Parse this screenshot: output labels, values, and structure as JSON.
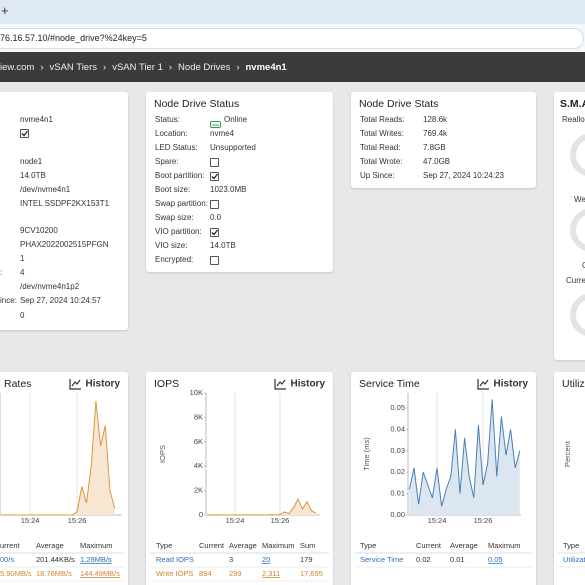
{
  "browser": {
    "tab": "+",
    "address": "76.16.57.10/#node_drive?%24key=5"
  },
  "breadcrumb": {
    "items": [
      "iew.com",
      "vSAN Tiers",
      "vSAN Tier 1",
      "Node Drives",
      "nvme4n1"
    ],
    "separator": "›"
  },
  "drive_panel": {
    "rows": [
      {
        "value": "nvme4n1"
      },
      {
        "checked": true
      },
      {
        "value": "node1"
      },
      {
        "value": "14.0TB"
      },
      {
        "value": "/dev/nvme4n1"
      },
      {
        "value": "INTEL SSDPF2KX153T1"
      },
      {
        "value": "9CV10200"
      },
      {
        "value": "PHAX2022002515PFGN"
      },
      {
        "value": "1"
      },
      {
        "label": ":",
        "value": "4"
      },
      {
        "value": "/dev/nvme4n1p2"
      },
      {
        "label": "ince:",
        "value": "Sep 27, 2024 10:24:57"
      },
      {
        "value": "0"
      }
    ]
  },
  "status_panel": {
    "title": "Node Drive Status",
    "rows": [
      {
        "label": "Status:",
        "value": "Online"
      },
      {
        "label": "Location:",
        "value": "nvme4"
      },
      {
        "label": "LED Status:",
        "value": "Unsupported"
      },
      {
        "label": "Spare:",
        "checked": false
      },
      {
        "label": "Boot partition:",
        "checked": true
      },
      {
        "label": "Boot size:",
        "value": "1023.0MB"
      },
      {
        "label": "Swap partition:",
        "checked": false
      },
      {
        "label": "Swap size:",
        "value": "0.0"
      },
      {
        "label": "VIO partition:",
        "checked": true
      },
      {
        "label": "VIO size:",
        "value": "14.0TB"
      },
      {
        "label": "Encrypted:",
        "checked": false
      }
    ]
  },
  "stats_panel": {
    "title": "Node Drive Stats",
    "rows": [
      {
        "label": "Total Reads:",
        "value": "128.6k"
      },
      {
        "label": "Total Writes:",
        "value": "769.4k"
      },
      {
        "label": "Total Read:",
        "value": "7.8GB"
      },
      {
        "label": "Total Wrote:",
        "value": "47.0GB"
      },
      {
        "label": "Up Since:",
        "value": "Sep 27, 2024 10:24:23"
      }
    ]
  },
  "smart_panel": {
    "title": "S.M.A",
    "labels": [
      "Realloc",
      "We",
      "C",
      "Curre"
    ]
  },
  "chart_data": [
    {
      "type": "area",
      "title": "Rates",
      "history": "History",
      "x": [
        22.8,
        23.0,
        23.2,
        23.4,
        23.6,
        23.8,
        24.0,
        24.2,
        24.4,
        24.6,
        24.8,
        25.0,
        25.2,
        25.4,
        25.6,
        25.8,
        26.0,
        26.2,
        26.4,
        26.6,
        26.8,
        27.0,
        27.2,
        27.4,
        27.6
      ],
      "xlim": [
        22.72,
        27.91
      ],
      "xticks": [
        {
          "value": 24,
          "label": "15:24"
        },
        {
          "value": 26,
          "label": "15:26"
        }
      ],
      "ylim": [
        0,
        150
      ],
      "series": [
        {
          "color": "#e0953a",
          "fill": "#f7e6d2",
          "values": [
            0,
            0,
            0,
            0,
            0,
            0,
            0,
            0,
            0,
            0,
            0,
            0,
            0,
            0,
            0,
            0,
            4,
            35,
            15,
            60,
            140,
            85,
            110,
            30,
            8
          ]
        }
      ],
      "table": {
        "columns": [
          "urrent",
          "Average",
          "Maximum"
        ],
        "colors": [
          "#2c6fb5",
          "#d4852c"
        ],
        "rows": [
          [
            "00/s",
            "201.44KB/s",
            "1.29MB/s"
          ],
          [
            "5.90MB/s",
            "18.76MB/s",
            "144.49MB/s"
          ]
        ]
      }
    },
    {
      "type": "area",
      "title": "IOPS",
      "history": "History",
      "y_label": "IOPS",
      "x": [
        22.8,
        23.0,
        23.2,
        23.4,
        23.6,
        23.8,
        24.0,
        24.2,
        24.4,
        24.6,
        24.8,
        25.0,
        25.2,
        25.4,
        25.6,
        25.8,
        26.0,
        26.2,
        26.4,
        26.6,
        26.8,
        27.0,
        27.2,
        27.4,
        27.6
      ],
      "xlim": [
        22.71,
        27.78
      ],
      "xticks": [
        {
          "value": 24,
          "label": "15:24"
        },
        {
          "value": 26,
          "label": "15:26"
        }
      ],
      "ylim": [
        0,
        10000
      ],
      "yticks": [
        0,
        {
          "value": 2000,
          "label": "2K"
        },
        {
          "value": 4000,
          "label": "4K"
        },
        {
          "value": 6000,
          "label": "6K"
        },
        {
          "value": 8000,
          "label": "8K"
        },
        {
          "value": 10000,
          "label": "10K"
        }
      ],
      "series": [
        {
          "name": "Write IOPS",
          "color": "#e0953a",
          "fill": "#f7e6d2",
          "values": [
            10,
            0,
            15,
            0,
            5,
            0,
            10,
            0,
            0,
            20,
            0,
            10,
            0,
            0,
            15,
            0,
            40,
            250,
            120,
            600,
            1300,
            500,
            1100,
            350,
            150
          ]
        }
      ],
      "table": {
        "columns": [
          "Type",
          "Current",
          "Average",
          "Maximum",
          "Sum"
        ],
        "colors": [
          "#2c6fb5",
          "#d4852c"
        ],
        "rows": [
          [
            "Read IOPS",
            null,
            "3",
            "20",
            "179"
          ],
          [
            "Write IOPS",
            "894",
            "299",
            "2,311",
            "17,695"
          ]
        ]
      }
    },
    {
      "type": "area",
      "title": "Service Time",
      "history": "History",
      "y_label": "Time (ms)",
      "x": [
        22.8,
        23.0,
        23.2,
        23.4,
        23.6,
        23.8,
        24.0,
        24.2,
        24.4,
        24.6,
        24.8,
        25.0,
        25.2,
        25.4,
        25.6,
        25.8,
        26.0,
        26.2,
        26.4,
        26.6,
        26.8,
        27.0,
        27.2,
        27.4,
        27.6
      ],
      "xlim": [
        22.74,
        27.65
      ],
      "xticks": [
        {
          "value": 24,
          "label": "15:24"
        },
        {
          "value": 26,
          "label": "15:26"
        }
      ],
      "ylim": [
        0,
        0.057
      ],
      "yticks": [
        {
          "value": 0,
          "label": "0.00"
        },
        0.01,
        0.02,
        0.03,
        0.04,
        0.05
      ],
      "series": [
        {
          "name": "Service Time",
          "color": "#4a7fb5",
          "fill": "#dce6f0",
          "values": [
            0.012,
            0.022,
            0.005,
            0.02,
            0.014,
            0.008,
            0.022,
            0.004,
            0.012,
            0.018,
            0.04,
            0.01,
            0.036,
            0.018,
            0.008,
            0.042,
            0.014,
            0.024,
            0.054,
            0.018,
            0.046,
            0.028,
            0.04,
            0.022,
            0.03
          ]
        }
      ],
      "table": {
        "columns": [
          "Type",
          "Current",
          "Average",
          "Maximum"
        ],
        "colors": [
          "#2c6fb5"
        ],
        "rows": [
          [
            "Service Time",
            "0.02",
            "0.01",
            "0.05"
          ]
        ]
      }
    },
    {
      "type": "area",
      "title": "Utiliz",
      "y_label": "Percent",
      "table": {
        "columns": [
          "Type"
        ],
        "colors": [
          "#2c6fb5"
        ],
        "rows": [
          [
            "Utilizat"
          ]
        ]
      }
    }
  ]
}
